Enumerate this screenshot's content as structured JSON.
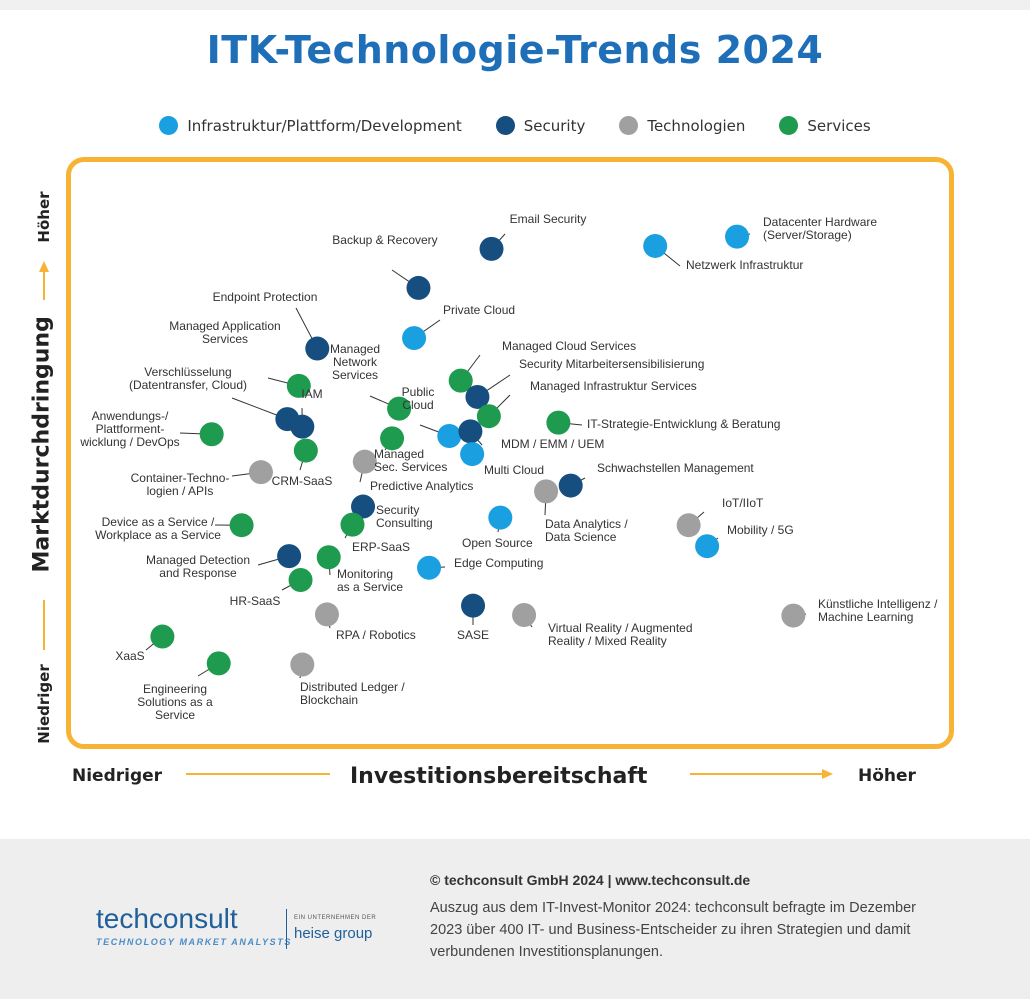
{
  "title": "ITK-Technologie-Trends 2024",
  "legend": [
    {
      "label": "Infrastruktur/Plattform/Development",
      "color": "#1aa0e1"
    },
    {
      "label": "Security",
      "color": "#174e80"
    },
    {
      "label": "Technologien",
      "color": "#a0a0a0"
    },
    {
      "label": "Services",
      "color": "#1f9b50"
    }
  ],
  "axes": {
    "y_title": "Marktdurchdringung",
    "y_low": "Niedriger",
    "y_high": "Höher",
    "x_title": "Investitionsbereitschaft",
    "x_low": "Niedriger",
    "x_high": "Höher"
  },
  "chart_data": {
    "type": "scatter",
    "title": "ITK-Technologie-Trends 2024",
    "xlabel": "Investitionsbereitschaft",
    "ylabel": "Marktdurchdringung",
    "xlim": [
      0,
      100
    ],
    "ylim": [
      0,
      100
    ],
    "categories": [
      "Infrastruktur/Plattform/Development",
      "Security",
      "Technologien",
      "Services"
    ],
    "points": [
      {
        "label": [
          "Email Security"
        ],
        "cat": "Security",
        "x": 47.9,
        "y": 85.1
      },
      {
        "label": [
          "Datacenter Hardware",
          "(Server/Storage)"
        ],
        "cat": "Infrastruktur/Plattform/Development",
        "x": 75.8,
        "y": 87.2
      },
      {
        "label": [
          "Netzwerk Infrastruktur"
        ],
        "cat": "Infrastruktur/Plattform/Development",
        "x": 66.5,
        "y": 85.6
      },
      {
        "label": [
          "Backup & Recovery"
        ],
        "cat": "Security",
        "x": 39.6,
        "y": 78.4
      },
      {
        "label": [
          "Endpoint Protection"
        ],
        "cat": "Security",
        "x": 28.1,
        "y": 68.0
      },
      {
        "label": [
          "Private Cloud"
        ],
        "cat": "Infrastruktur/Plattform/Development",
        "x": 39.1,
        "y": 69.8
      },
      {
        "label": [
          "Managed Application",
          "Services"
        ],
        "cat": "Services",
        "x": 26.0,
        "y": 61.6
      },
      {
        "label": [
          "Managed Cloud Services"
        ],
        "cat": "Services",
        "x": 44.4,
        "y": 62.5
      },
      {
        "label": [
          "Security Mitarbeitersensibilisierung"
        ],
        "cat": "Security",
        "x": 46.3,
        "y": 59.7
      },
      {
        "label": [
          "Managed",
          "Network",
          "Services"
        ],
        "cat": "Services",
        "x": 37.4,
        "y": 57.7
      },
      {
        "label": [
          "Managed Infrastruktur Services"
        ],
        "cat": "Services",
        "x": 47.6,
        "y": 56.4
      },
      {
        "label": [
          "IT-Strategie-Entwicklung & Beratung"
        ],
        "cat": "Services",
        "x": 55.5,
        "y": 55.3
      },
      {
        "label": [
          "Verschlüsselung",
          "(Datentransfer, Cloud)"
        ],
        "cat": "Security",
        "x": 24.7,
        "y": 55.9
      },
      {
        "label": [
          "IAM"
        ],
        "cat": "Security",
        "x": 26.4,
        "y": 54.6
      },
      {
        "label": [
          "Anwendungs-/",
          "Plattforment-",
          "wicklung / DevOps"
        ],
        "cat": "Services",
        "x": 16.1,
        "y": 53.3
      },
      {
        "label": [
          "Public",
          "Cloud"
        ],
        "cat": "Infrastruktur/Plattform/Development",
        "x": 43.1,
        "y": 53.0
      },
      {
        "label": [
          "MDM / EMM / UEM"
        ],
        "cat": "Security",
        "x": 45.5,
        "y": 53.8
      },
      {
        "label": [
          "Managed",
          "Sec. Services"
        ],
        "cat": "Services",
        "x": 36.6,
        "y": 52.6
      },
      {
        "label": [
          "CRM-SaaS"
        ],
        "cat": "Services",
        "x": 26.8,
        "y": 50.5
      },
      {
        "label": [
          "Multi Cloud"
        ],
        "cat": "Infrastruktur/Plattform/Development",
        "x": 45.7,
        "y": 49.9
      },
      {
        "label": [
          "Predictive Analytics"
        ],
        "cat": "Technologien",
        "x": 33.5,
        "y": 48.6
      },
      {
        "label": [
          "Container-Techno-",
          "logien / APIs"
        ],
        "cat": "Technologien",
        "x": 21.7,
        "y": 46.8
      },
      {
        "label": [
          "Schwachstellen Management"
        ],
        "cat": "Security",
        "x": 56.9,
        "y": 44.5
      },
      {
        "label": [
          "Data Analytics /",
          "Data Science"
        ],
        "cat": "Technologien",
        "x": 54.1,
        "y": 43.5
      },
      {
        "label": [
          "Security",
          "Consulting"
        ],
        "cat": "Security",
        "x": 33.3,
        "y": 40.9
      },
      {
        "label": [
          "Open Source"
        ],
        "cat": "Infrastruktur/Plattform/Development",
        "x": 48.9,
        "y": 39.0
      },
      {
        "label": [
          "Device as a Service /",
          "Workplace as a Service"
        ],
        "cat": "Services",
        "x": 19.5,
        "y": 37.7
      },
      {
        "label": [
          "IoT/IIoT"
        ],
        "cat": "Technologien",
        "x": 70.3,
        "y": 37.7
      },
      {
        "label": [
          "Mobility / 5G"
        ],
        "cat": "Infrastruktur/Plattform/Development",
        "x": 72.4,
        "y": 34.1
      },
      {
        "label": [
          "ERP-SaaS"
        ],
        "cat": "Services",
        "x": 32.1,
        "y": 37.8
      },
      {
        "label": [
          "Managed Detection",
          "and Response"
        ],
        "cat": "Security",
        "x": 24.9,
        "y": 32.4
      },
      {
        "label": [
          "Monitoring",
          "as a Service"
        ],
        "cat": "Services",
        "x": 29.4,
        "y": 32.2
      },
      {
        "label": [
          "Edge Computing"
        ],
        "cat": "Infrastruktur/Plattform/Development",
        "x": 40.8,
        "y": 30.4
      },
      {
        "label": [
          "HR-SaaS"
        ],
        "cat": "Services",
        "x": 26.2,
        "y": 28.3
      },
      {
        "label": [
          "Künstliche Intelligenz /",
          "Machine Learning"
        ],
        "cat": "Technologien",
        "x": 82.2,
        "y": 22.2
      },
      {
        "label": [
          "SASE"
        ],
        "cat": "Security",
        "x": 45.8,
        "y": 23.9
      },
      {
        "label": [
          "RPA / Robotics"
        ],
        "cat": "Technologien",
        "x": 29.2,
        "y": 22.4
      },
      {
        "label": [
          "Virtual Reality / Augmented",
          "Reality / Mixed Reality"
        ],
        "cat": "Technologien",
        "x": 51.6,
        "y": 22.3
      },
      {
        "label": [
          "XaaS"
        ],
        "cat": "Services",
        "x": 10.5,
        "y": 18.6
      },
      {
        "label": [
          "Engineering",
          "Solutions as a",
          "Service"
        ],
        "cat": "Services",
        "x": 16.9,
        "y": 14.0
      },
      {
        "label": [
          "Distributed Ledger /",
          "Blockchain"
        ],
        "cat": "Technologien",
        "x": 26.4,
        "y": 13.8
      }
    ]
  },
  "footer": {
    "copyright": "© techconsult GmbH 2024  |  www.techconsult.de",
    "note": "Auszug aus dem IT-Invest-Monitor 2024: techconsult befragte im Dezember 2023 über 400 IT- und Business-Entscheider zu ihren Strategien und damit verbundenen Investitionsplanungen.",
    "logo_main_light": "techconsult",
    "logo_sub": "TECHNOLOGY MARKET ANALYSTS",
    "logo_owner_small": "EIN UNTERNEHMEN DER",
    "logo_owner": "heise group"
  }
}
